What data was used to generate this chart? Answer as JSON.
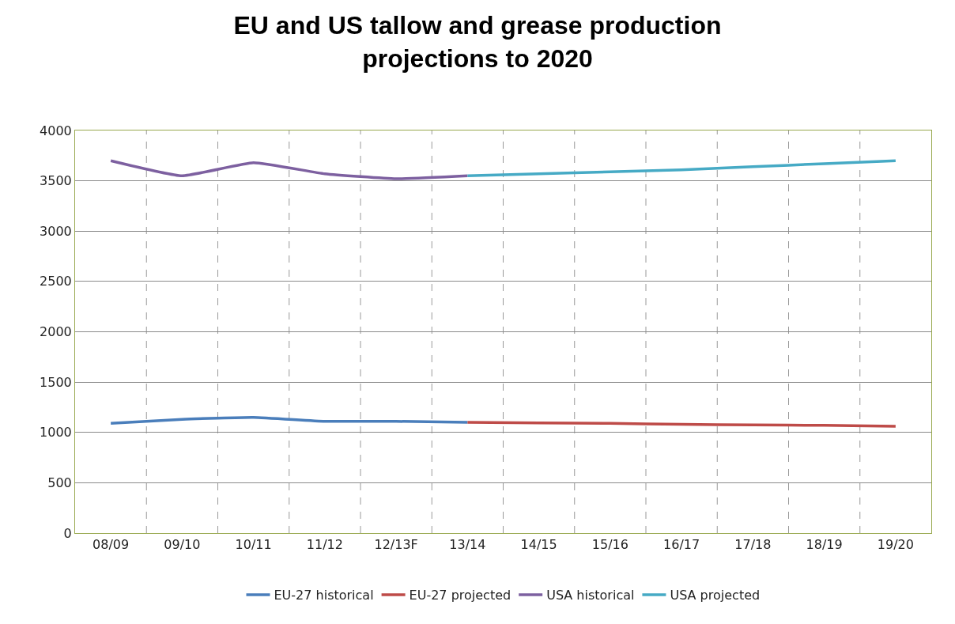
{
  "chart_data": {
    "type": "line",
    "title": "EU and US tallow and grease production\nprojections to 2020",
    "categories": [
      "08/09",
      "09/10",
      "10/11",
      "11/12",
      "12/13F",
      "13/14",
      "14/15",
      "15/16",
      "16/17",
      "17/18",
      "18/19",
      "19/20"
    ],
    "series": [
      {
        "name": "EU-27 historical",
        "color": "#4a7ebb",
        "values": [
          1090,
          1130,
          1150,
          1110,
          1110,
          1100,
          null,
          null,
          null,
          null,
          null,
          null
        ]
      },
      {
        "name": "EU-27 projected",
        "color": "#be4b48",
        "values": [
          null,
          null,
          null,
          null,
          null,
          1100,
          1095,
          1090,
          1080,
          1075,
          1070,
          1060
        ]
      },
      {
        "name": "USA historical",
        "color": "#7d60a0",
        "values": [
          3700,
          3550,
          3680,
          3570,
          3520,
          3550,
          null,
          null,
          null,
          null,
          null,
          null
        ]
      },
      {
        "name": "USA projected",
        "color": "#46aac5",
        "values": [
          null,
          null,
          null,
          null,
          null,
          3550,
          3570,
          3590,
          3610,
          3640,
          3670,
          3700
        ]
      }
    ],
    "ylim": [
      0,
      4000
    ],
    "yticks": [
      0,
      500,
      1000,
      1500,
      2000,
      2500,
      3000,
      3500,
      4000
    ],
    "grid": true,
    "legend": "bottom",
    "marker": "none",
    "line_style": "solid"
  }
}
